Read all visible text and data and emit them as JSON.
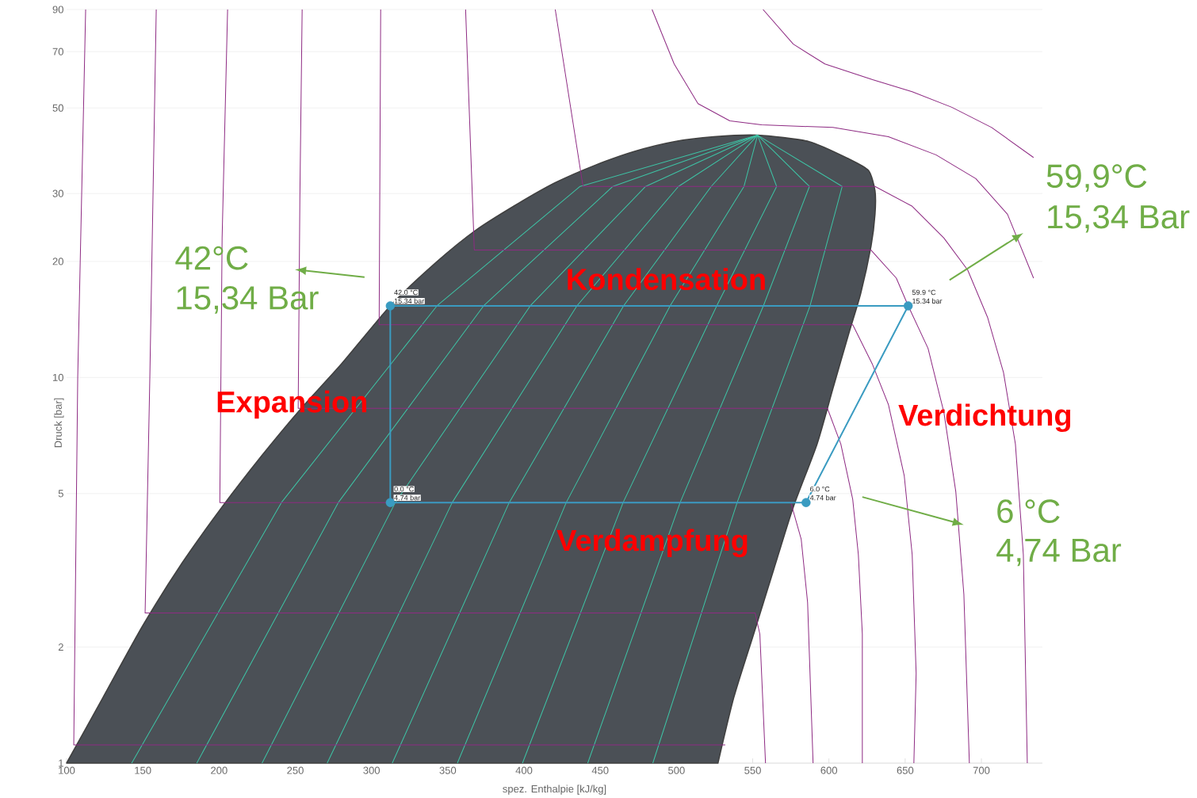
{
  "chart_data": {
    "type": "line",
    "xlabel": "spez. Enthalpie [kJ/kg]",
    "ylabel": "Druck [bar]",
    "log": "y",
    "grid": "y",
    "xlim": [
      100,
      740
    ],
    "ylim": [
      1,
      90
    ],
    "xticks": [
      100,
      150,
      200,
      250,
      300,
      350,
      400,
      450,
      500,
      550,
      600,
      650,
      700
    ],
    "yticks": [
      1,
      2,
      5,
      10,
      20,
      30,
      50,
      70,
      90
    ],
    "series": [
      {
        "type": "area",
        "color": "#4b5056",
        "x": [
          100,
          123.9,
          149.9,
          175.9,
          201.9,
          227.9,
          253.9,
          279.9,
          312.3,
          342.5,
          368.5,
          394.5,
          420.5,
          446.5,
          472.5,
          498.5,
          524.5,
          553.2,
          587.0,
          613.0,
          626.0,
          630.2,
          630.2,
          627.6,
          620.8,
          613.0,
          602.6,
          592.2,
          576.6,
          563.6,
          550.6,
          537.6,
          527.2
        ],
        "values": [
          1,
          1.48,
          2.27,
          3.31,
          4.61,
          6.26,
          8.32,
          10.8,
          15.34,
          19.9,
          24.1,
          28.0,
          32.0,
          35.5,
          38.6,
          40.9,
          42.1,
          42.5,
          40.9,
          36.9,
          34.4,
          30.5,
          26.5,
          21.9,
          16.5,
          13.0,
          9.36,
          6.72,
          4.61,
          3.16,
          2.16,
          1.48,
          1
        ]
      },
      {
        "color": "#3ec4a6",
        "x": [
          142.7,
          240.9,
          342.9,
          436.8,
          553.2
        ],
        "values": [
          1,
          4.74,
          15.34,
          31.3,
          42.5
        ]
      },
      {
        "color": "#3ec4a6",
        "x": [
          185.4,
          278.2,
          373.5,
          458.3,
          553.2
        ],
        "values": [
          1,
          4.74,
          15.34,
          31.3,
          42.5
        ]
      },
      {
        "color": "#3ec4a6",
        "x": [
          228.2,
          315.6,
          404.1,
          479.8,
          553.2
        ],
        "values": [
          1,
          4.74,
          15.34,
          31.3,
          42.5
        ]
      },
      {
        "color": "#3ec4a6",
        "x": [
          270.9,
          352.9,
          434.7,
          501.3,
          553.2
        ],
        "values": [
          1,
          4.74,
          15.34,
          31.3,
          42.5
        ]
      },
      {
        "color": "#3ec4a6",
        "x": [
          313.6,
          390.3,
          465.3,
          522.8,
          553.2
        ],
        "values": [
          1,
          4.74,
          15.34,
          31.3,
          42.5
        ]
      },
      {
        "color": "#3ec4a6",
        "x": [
          356.3,
          427.7,
          495.8,
          544.3,
          553.2
        ],
        "values": [
          1,
          4.74,
          15.34,
          31.3,
          42.5
        ]
      },
      {
        "color": "#3ec4a6",
        "x": [
          399.0,
          465.0,
          526.4,
          565.7,
          553.2
        ],
        "values": [
          1,
          4.74,
          15.34,
          31.3,
          42.5
        ]
      },
      {
        "color": "#3ec4a6",
        "x": [
          441.8,
          502.4,
          557.0,
          587.2,
          553.2
        ],
        "values": [
          1,
          4.74,
          15.34,
          31.3,
          42.5
        ]
      },
      {
        "color": "#3ec4a6",
        "x": [
          484.5,
          539.8,
          587.6,
          608.7,
          553.2
        ],
        "values": [
          1,
          4.74,
          15.34,
          31.3,
          42.5
        ]
      },
      {
        "color": "#8e2b83",
        "x": [
          112.5,
          107.3,
          104.7,
          532.0
        ],
        "values": [
          90,
          10,
          1.115,
          1.115
        ]
      },
      {
        "color": "#8e2b83",
        "x": [
          158.8,
          154.6,
          151.5,
          551.6,
          554.7,
          558.4
        ],
        "values": [
          90,
          10,
          2.45,
          2.45,
          2.16,
          1
        ]
      },
      {
        "color": "#8e2b83",
        "x": [
          205.6,
          202,
          200.5,
          575.0,
          581.8,
          586.0,
          589.6
        ],
        "values": [
          90,
          23.0,
          4.74,
          4.74,
          3.81,
          2.61,
          1
        ]
      },
      {
        "color": "#8e2b83",
        "x": [
          254.5,
          253,
          251.9,
          599.0,
          607.8,
          615.6,
          619.3,
          621.9,
          621.9
        ],
        "values": [
          90,
          29.1,
          8.32,
          8.32,
          6.72,
          4.83,
          3.47,
          2.16,
          1
        ]
      },
      {
        "color": "#8e2b83",
        "x": [
          306,
          305,
          615.6,
          628.6,
          639.0,
          649.4,
          654.6,
          657.2,
          655.7
        ],
        "values": [
          90,
          13.7,
          13.7,
          10.8,
          8.51,
          5.56,
          3.47,
          1.71,
          1
        ]
      },
      {
        "color": "#8e2b83",
        "x": [
          361.7,
          367.4,
          627.6,
          644.2,
          652.0,
          665.0,
          675.4,
          683.2,
          688.5,
          692.1
        ],
        "values": [
          90,
          21.4,
          21.4,
          18.1,
          15.34,
          11.9,
          8.12,
          5.06,
          2.74,
          1
        ]
      },
      {
        "color": "#8e2b83",
        "x": [
          420.5,
          438.7,
          630.2,
          654.6,
          675.4,
          691.0,
          704.1,
          714.5,
          722.3,
          727.5,
          730.1
        ],
        "values": [
          90,
          31.3,
          31.3,
          27.8,
          23.0,
          19.0,
          14.3,
          10.3,
          6.72,
          3.47,
          1
        ]
      },
      {
        "color": "#8e2b83",
        "x": [
          484.0,
          498.5,
          514.1,
          535.0,
          555.8,
          602.6,
          639.0,
          670.2,
          696.3,
          717.1,
          734.2
        ],
        "values": [
          90,
          65.0,
          51.3,
          46.3,
          45.2,
          44.5,
          42.1,
          37.8,
          32.8,
          26.5,
          18.1
        ]
      },
      {
        "color": "#8e2b83",
        "x": [
          556.8,
          576.6,
          597.4,
          628.6,
          654.6,
          680.6,
          706.7,
          734.2
        ],
        "values": [
          90,
          73.2,
          65.0,
          59.2,
          55.1,
          50.2,
          44.5,
          37.2
        ]
      },
      {
        "type": "line",
        "color": "#3a9bc1",
        "x": [
          312.3,
          312.3,
          585,
          652
        ],
        "values": [
          15.34,
          4.74,
          4.74,
          15.34
        ]
      },
      {
        "type": "line",
        "color": "#3a9bc1",
        "x": [
          652,
          312.3
        ],
        "values": [
          15.34,
          15.34
        ]
      },
      {
        "type": "scatter",
        "color": "#3a9bc1",
        "x": [
          312.3,
          312.3,
          585,
          652
        ],
        "values": [
          15.34,
          4.74,
          4.74,
          15.34
        ]
      }
    ],
    "annotations": [
      "Kondensation",
      "Expansion",
      "Verdichtung",
      "Verdampfung",
      "42°C",
      "15,34 Bar",
      "59,9°C",
      "15,34 Bar",
      "6 °C",
      "4,74 Bar",
      {
        "text": "42.0 °C",
        "x": 312.3,
        "y": 15.34
      },
      {
        "text": "15.34 bar",
        "x": 312.3,
        "y": 15.34
      },
      {
        "text": "0.0 °C",
        "x": 312.3,
        "y": 4.74
      },
      {
        "text": "4.74 bar",
        "x": 312.3,
        "y": 4.74
      },
      {
        "text": "6.0 °C",
        "x": 585,
        "y": 4.74
      },
      {
        "text": "4.74 bar",
        "x": 585,
        "y": 4.74
      },
      {
        "text": "59.9 °C",
        "x": 652,
        "y": 15.34
      },
      {
        "text": "15.34 bar",
        "x": 652,
        "y": 15.34
      }
    ]
  }
}
